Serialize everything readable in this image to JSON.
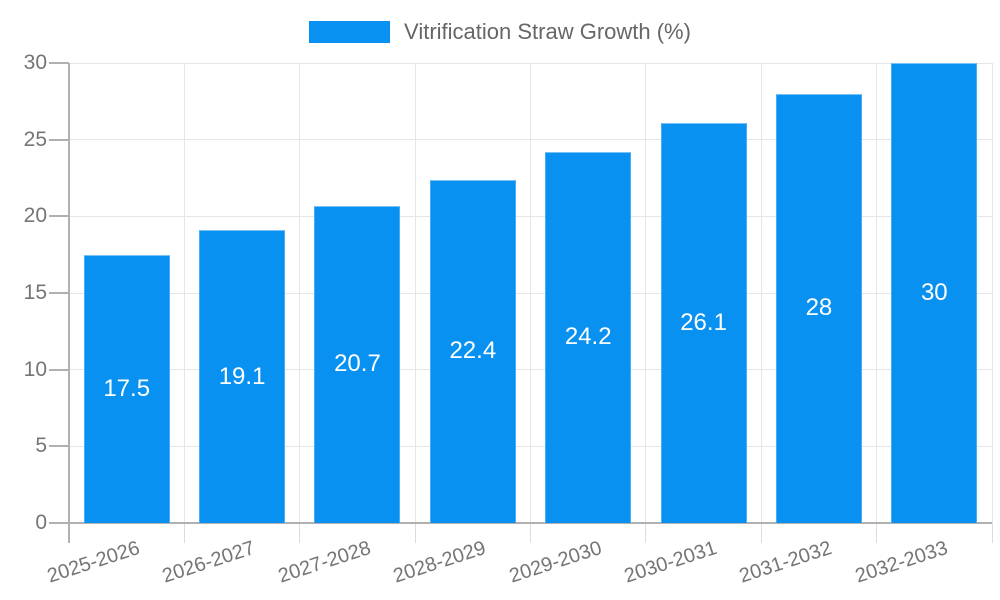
{
  "chart_data": {
    "type": "bar",
    "title": "Vitrification Straw Growth (%)",
    "categories": [
      "2025-2026",
      "2026-2027",
      "2027-2028",
      "2028-2029",
      "2029-2030",
      "2030-2031",
      "2031-2032",
      "2032-2033"
    ],
    "values": [
      17.5,
      19.1,
      20.7,
      22.4,
      24.2,
      26.1,
      28,
      30
    ],
    "value_labels": [
      "17.5",
      "19.1",
      "20.7",
      "22.4",
      "24.2",
      "26.1",
      "28",
      "30"
    ],
    "xlabel": "",
    "ylabel": "",
    "ylim": [
      0,
      30
    ],
    "yticks": [
      0,
      5,
      10,
      15,
      20,
      25,
      30
    ],
    "grid": true,
    "legend_position": "top",
    "colors": {
      "bar": "#0991f2",
      "value_label": "#ffffff",
      "axis_label": "#757575",
      "legend_text": "#666666",
      "grid_line": "#e6e6e6",
      "axis_line": "#b0b0b0",
      "tick_line": "#dcdcdc",
      "background": "#ffffff"
    }
  }
}
